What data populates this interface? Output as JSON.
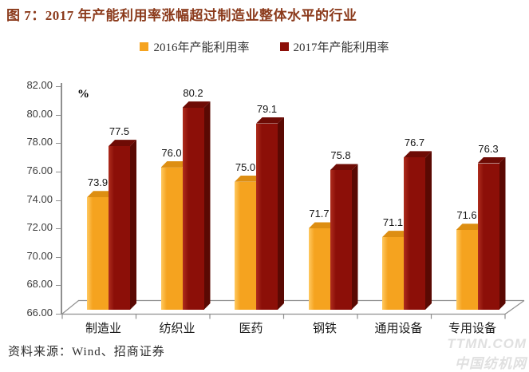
{
  "title": "图 7：2017 年产能利用率涨幅超过制造业整体水平的行业",
  "chart_data": {
    "type": "bar",
    "title": "图 7：2017 年产能利用率涨幅超过制造业整体水平的行业",
    "unit_label": "%",
    "categories": [
      "制造业",
      "纺织业",
      "医药",
      "钢铁",
      "通用设备",
      "专用设备"
    ],
    "series": [
      {
        "name": "2016年产能利用率",
        "values": [
          73.9,
          76.0,
          75.0,
          71.7,
          71.1,
          71.6
        ],
        "color": "#F5A31F",
        "color_light": "#FFC960",
        "color_top": "#DD8E12",
        "color_side": "#B97708"
      },
      {
        "name": "2017年产能利用率",
        "values": [
          77.5,
          80.2,
          79.1,
          75.8,
          76.7,
          76.3
        ],
        "color": "#8C0F08",
        "color_light": "#AE2D1E",
        "color_top": "#6E0B05",
        "color_side": "#5A0903"
      }
    ],
    "ylim": [
      66,
      82
    ],
    "ytick_step": 2,
    "ytick_decimals": 2,
    "value_label_decimals": 1,
    "legend_position": "top",
    "grid": false,
    "style": "3d-column"
  },
  "footer": {
    "source": "资料来源：Wind、招商证券"
  },
  "watermark": {
    "line1": "TTMN.COM",
    "line2": "中国纺机网"
  }
}
